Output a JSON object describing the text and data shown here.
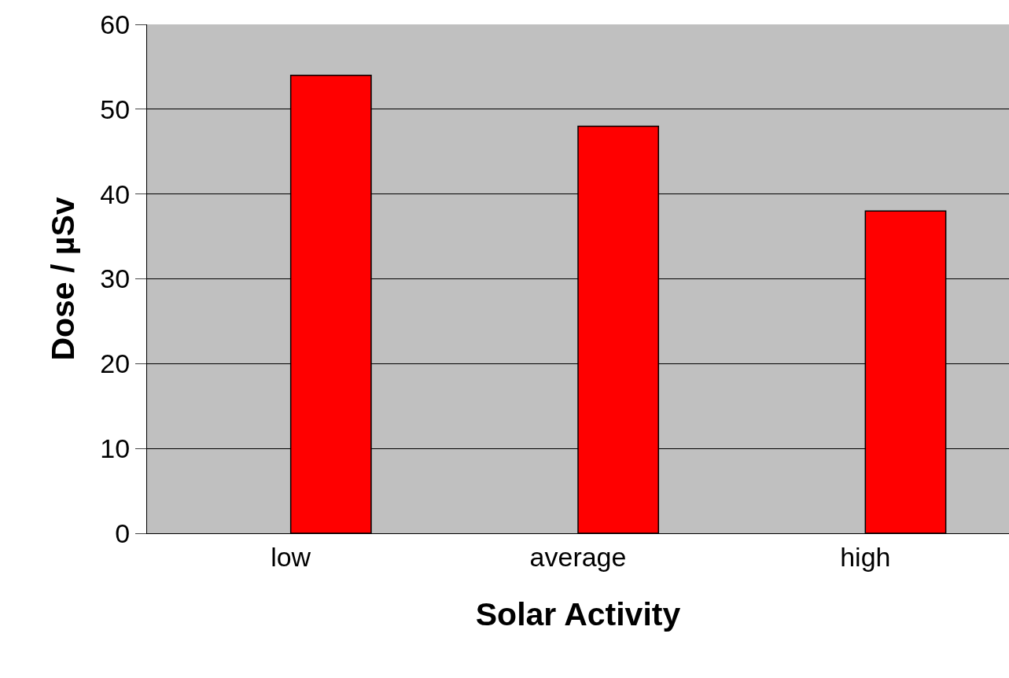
{
  "chart_data": {
    "type": "bar",
    "xlabel": "Solar Activity",
    "ylabel": "Dose / µSv",
    "categories": [
      "low",
      "average",
      "high"
    ],
    "values": [
      54,
      48,
      38
    ],
    "color": "#ff0000",
    "ylim": [
      0,
      60
    ],
    "yticks": [
      0,
      10,
      20,
      30,
      40,
      50,
      60
    ],
    "grid": "y"
  }
}
